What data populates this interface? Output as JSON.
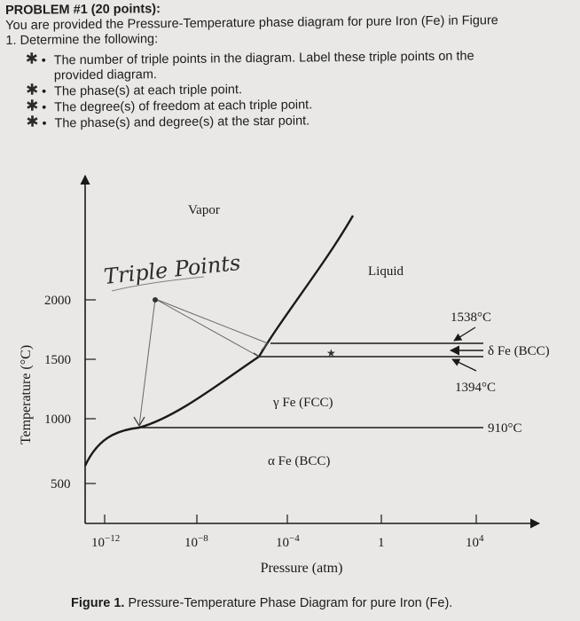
{
  "problem": {
    "heading": "PROBLEM #1 (20 points):",
    "intro_line1": "You are provided the Pressure-Temperature phase diagram for pure Iron (Fe) in Figure",
    "intro_line2": "1. Determine the following:",
    "bullets": [
      {
        "line1": "The number of triple points in the diagram.  Label these triple points on the",
        "line2": "provided diagram."
      },
      {
        "line1": "The phase(s) at each triple point.",
        "line2": ""
      },
      {
        "line1": "The degree(s) of freedom at each triple point.",
        "line2": ""
      },
      {
        "line1": "The phase(s) and degree(s) at the star point.",
        "line2": ""
      }
    ],
    "bullet_mark": "✱•",
    "bullet_icon": "handwritten-star-icon"
  },
  "chart_data": {
    "type": "diagram",
    "ylabel": "Temperature (°C)",
    "xlabel": "Pressure (atm)",
    "y_ticks": [
      "2000",
      "1500",
      "1000",
      "500"
    ],
    "x_ticks": [
      {
        "base": "10",
        "exp": "−12"
      },
      {
        "base": "10",
        "exp": "−8"
      },
      {
        "base": "10",
        "exp": "−4"
      },
      {
        "base": "1",
        "exp": ""
      },
      {
        "base": "10",
        "exp": "4"
      }
    ],
    "regions": {
      "vapor": "Vapor",
      "liquid": "Liquid",
      "gamma": "γ Fe (FCC)",
      "alpha": "α Fe (BCC)",
      "delta": "δ Fe (BCC)"
    },
    "temperatures": {
      "melting": "1538°C",
      "gamma_delta": "1394°C",
      "alpha_gamma": "910°C"
    },
    "annotation": "Triple Points",
    "star_mark": "★"
  },
  "caption": {
    "label": "Figure 1.",
    "text": "Pressure-Temperature Phase Diagram for pure Iron (Fe)."
  }
}
